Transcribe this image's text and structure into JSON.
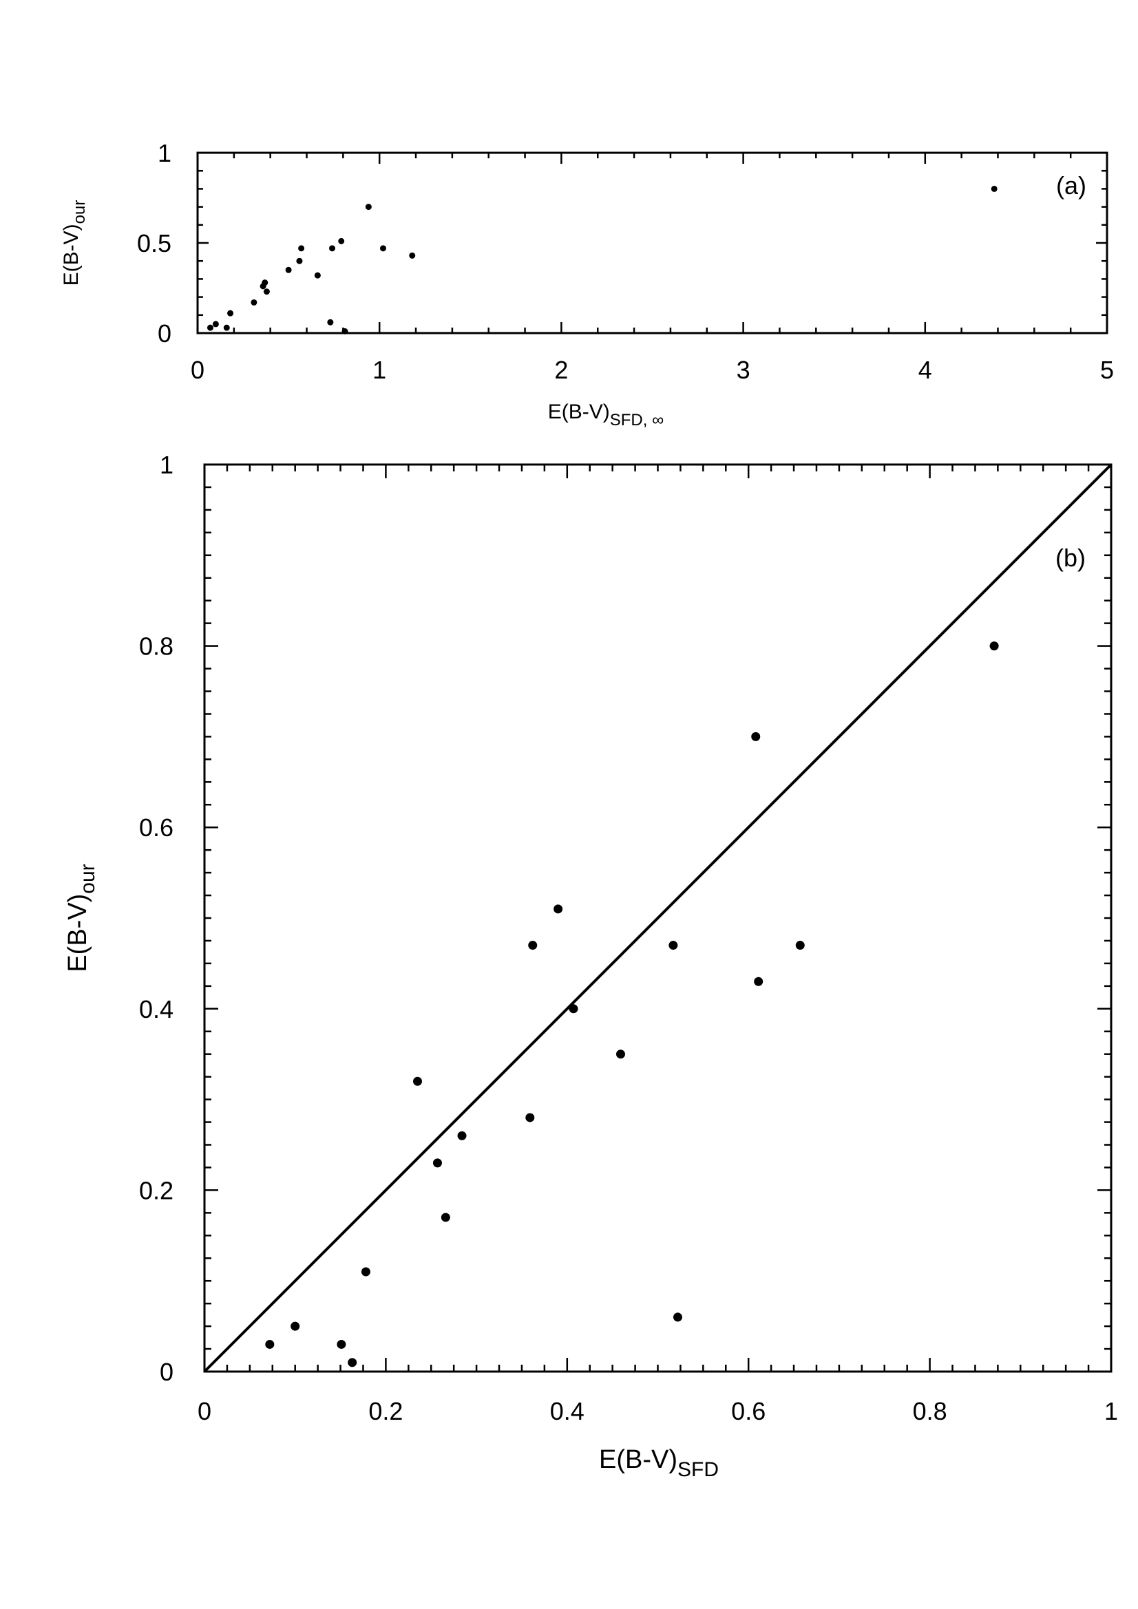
{
  "chart_data": [
    {
      "id": "a",
      "type": "scatter",
      "panel_label": "(a)",
      "xlabel": {
        "main": "E(B-V)",
        "sub": "SFD, ∞"
      },
      "ylabel": {
        "main": "E(B-V)",
        "sub": "our"
      },
      "xlim": [
        0,
        5
      ],
      "ylim": [
        0,
        1
      ],
      "xticks": [
        0,
        1,
        2,
        3,
        4,
        5
      ],
      "yticks": [
        0,
        0.5,
        1
      ],
      "xtick_labels": [
        "0",
        "1",
        "2",
        "3",
        "4",
        "5"
      ],
      "ytick_labels": [
        "0",
        "0.5",
        "1"
      ],
      "points": [
        {
          "x": 0.07,
          "y": 0.03
        },
        {
          "x": 0.1,
          "y": 0.05
        },
        {
          "x": 0.16,
          "y": 0.03
        },
        {
          "x": 0.18,
          "y": 0.11
        },
        {
          "x": 0.31,
          "y": 0.17
        },
        {
          "x": 0.36,
          "y": 0.26
        },
        {
          "x": 0.37,
          "y": 0.28
        },
        {
          "x": 0.38,
          "y": 0.23
        },
        {
          "x": 0.5,
          "y": 0.35
        },
        {
          "x": 0.56,
          "y": 0.4
        },
        {
          "x": 0.57,
          "y": 0.47
        },
        {
          "x": 0.66,
          "y": 0.32
        },
        {
          "x": 0.73,
          "y": 0.06
        },
        {
          "x": 0.74,
          "y": 0.47
        },
        {
          "x": 0.79,
          "y": 0.51
        },
        {
          "x": 0.81,
          "y": 0.01
        },
        {
          "x": 0.94,
          "y": 0.7
        },
        {
          "x": 1.02,
          "y": 0.47
        },
        {
          "x": 1.18,
          "y": 0.43
        },
        {
          "x": 4.38,
          "y": 0.8
        }
      ]
    },
    {
      "id": "b",
      "type": "scatter",
      "panel_label": "(b)",
      "xlabel": {
        "main": "E(B-V)",
        "sub": "SFD"
      },
      "ylabel": {
        "main": "E(B-V)",
        "sub": "our"
      },
      "xlim": [
        0,
        1
      ],
      "ylim": [
        0,
        1
      ],
      "xticks": [
        0,
        0.2,
        0.4,
        0.6,
        0.8,
        1
      ],
      "yticks": [
        0,
        0.2,
        0.4,
        0.6,
        0.8,
        1
      ],
      "xtick_labels": [
        "0",
        "0.2",
        "0.4",
        "0.6",
        "0.8",
        "1"
      ],
      "ytick_labels": [
        "0",
        "0.2",
        "0.4",
        "0.6",
        "0.8",
        "1"
      ],
      "reference_line": {
        "x": [
          0,
          1
        ],
        "y": [
          0,
          1
        ]
      },
      "points": [
        {
          "x": 0.072,
          "y": 0.03
        },
        {
          "x": 0.1,
          "y": 0.05
        },
        {
          "x": 0.151,
          "y": 0.03
        },
        {
          "x": 0.163,
          "y": 0.01
        },
        {
          "x": 0.178,
          "y": 0.11
        },
        {
          "x": 0.235,
          "y": 0.32
        },
        {
          "x": 0.257,
          "y": 0.23
        },
        {
          "x": 0.266,
          "y": 0.17
        },
        {
          "x": 0.284,
          "y": 0.26
        },
        {
          "x": 0.359,
          "y": 0.28
        },
        {
          "x": 0.362,
          "y": 0.47
        },
        {
          "x": 0.39,
          "y": 0.51
        },
        {
          "x": 0.407,
          "y": 0.4
        },
        {
          "x": 0.459,
          "y": 0.35
        },
        {
          "x": 0.517,
          "y": 0.47
        },
        {
          "x": 0.522,
          "y": 0.06
        },
        {
          "x": 0.608,
          "y": 0.7
        },
        {
          "x": 0.611,
          "y": 0.43
        },
        {
          "x": 0.657,
          "y": 0.47
        },
        {
          "x": 0.871,
          "y": 0.8
        }
      ]
    }
  ]
}
